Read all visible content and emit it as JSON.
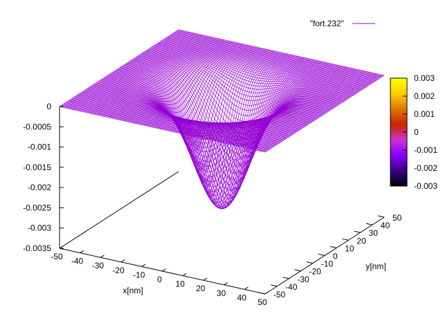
{
  "chart_data": {
    "type": "surface",
    "style": "3d-mesh-wireframe",
    "series": [
      {
        "name": "\"fort.232\"",
        "color": "#9400d3"
      }
    ],
    "function_note": "Gaussian well centered at origin with flat plateau at 0",
    "center": [
      0,
      0
    ],
    "min_value": -0.0029,
    "sigma_nm": 12,
    "x": {
      "label": "x[nm]",
      "range": [
        -50,
        50
      ],
      "ticks": [
        -50,
        -40,
        -30,
        -20,
        -10,
        0,
        10,
        20,
        30,
        40,
        50
      ],
      "tick_labels": [
        "-50",
        "-40",
        "-30",
        "-20",
        "-10",
        "0",
        "10",
        "20",
        "30",
        "40",
        "50"
      ]
    },
    "y": {
      "label": "y[nm]",
      "range": [
        -50,
        50
      ],
      "ticks": [
        -50,
        -40,
        -30,
        -20,
        -10,
        0,
        10,
        20,
        30,
        40,
        50
      ],
      "tick_labels": [
        "-50",
        "-40",
        "-30",
        "-20",
        "-10",
        "0",
        "10",
        "20",
        "30",
        "40",
        "50"
      ]
    },
    "z": {
      "label": "",
      "range": [
        -0.0035,
        0
      ],
      "ticks": [
        0,
        -0.0005,
        -0.001,
        -0.0015,
        -0.002,
        -0.0025,
        -0.003,
        -0.0035
      ],
      "tick_labels": [
        "0",
        "-0.0005",
        "-0.001",
        "-0.0015",
        "-0.002",
        "-0.0025",
        "-0.003",
        "-0.0035"
      ]
    },
    "colorbar": {
      "range": [
        -0.003,
        0.003
      ],
      "tick_labels": [
        "0.003",
        "0.002",
        "0.001",
        "0",
        "-0.001",
        "-0.002",
        "-0.003"
      ],
      "palette": [
        "#000000",
        "#3a0088",
        "#8800ff",
        "#cc33cc",
        "#cc2200",
        "#dd7700",
        "#ffcc00",
        "#ffff00"
      ]
    },
    "legend_position": "top-right",
    "grid": false
  }
}
